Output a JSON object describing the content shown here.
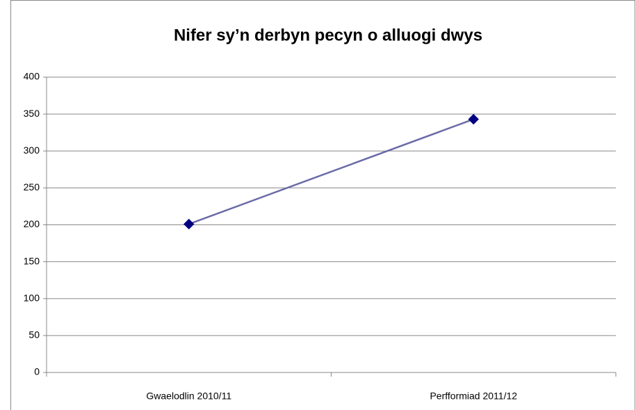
{
  "chart_data": {
    "type": "line",
    "title": "Nifer sy’n derbyn pecyn o alluogi dwys",
    "categories": [
      "Gwaelodlin 2010/11",
      "Perfformiad 2011/12"
    ],
    "series": [
      {
        "name": "Nifer",
        "color": "#6b6ba8",
        "marker_color": "#000080",
        "values": [
          201,
          343
        ]
      }
    ],
    "ylim": [
      0,
      400
    ],
    "yticks": [
      0,
      50,
      100,
      150,
      200,
      250,
      300,
      350,
      400
    ],
    "grid": true
  }
}
